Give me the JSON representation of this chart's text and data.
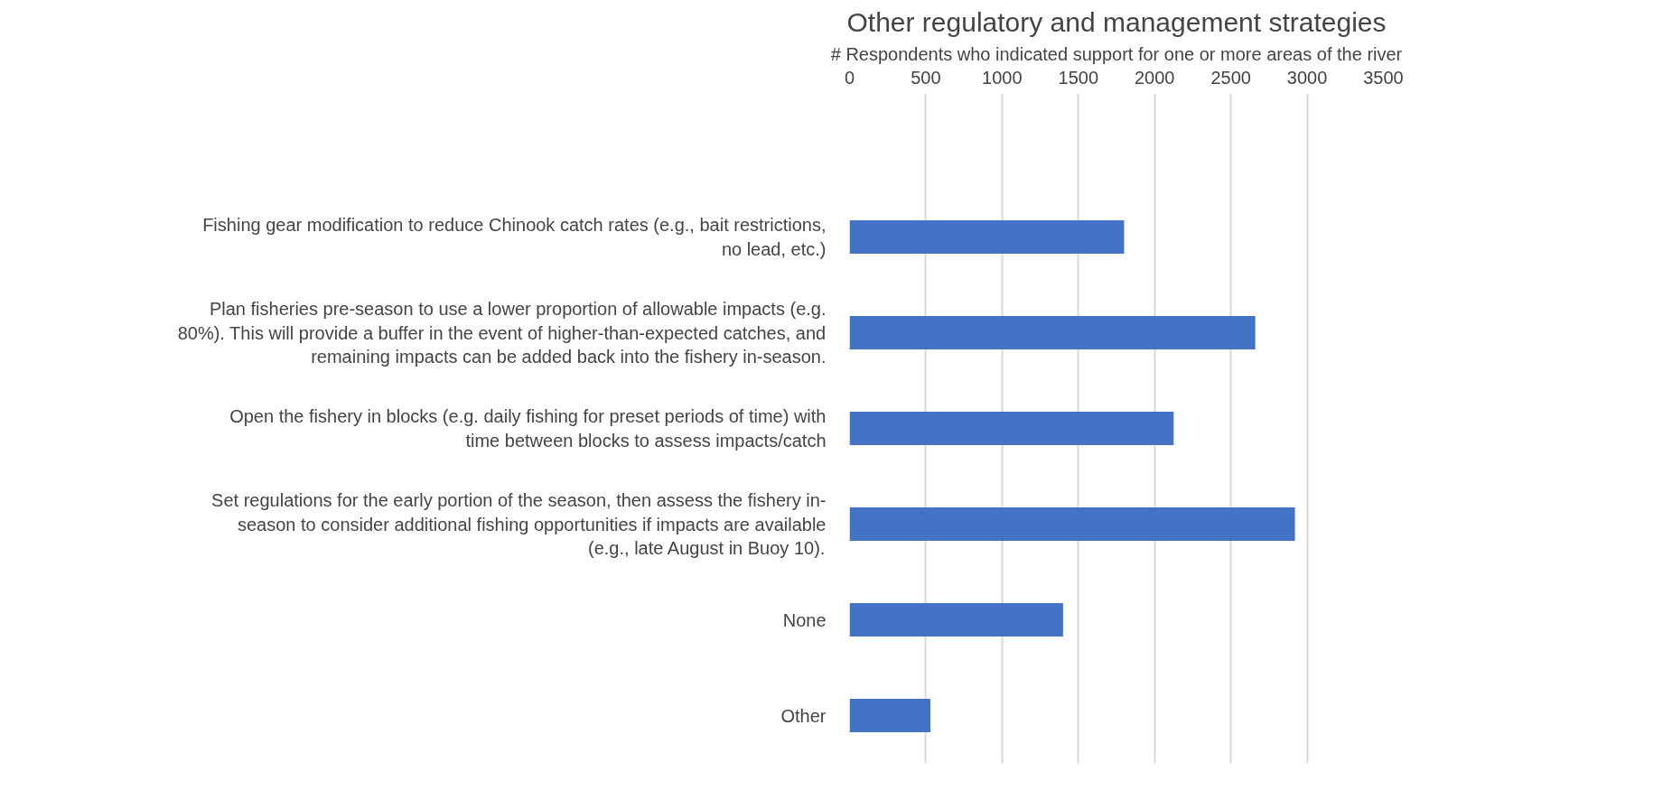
{
  "chart_data": {
    "type": "bar",
    "orientation": "horizontal",
    "title": "Other regulatory and management strategies",
    "xlabel": "# Respondents who indicated support for one or more areas of the river",
    "categories": [
      null,
      "Fishing gear modification to reduce Chinook catch rates (e.g., bait restrictions, no lead, etc.)",
      "Plan fisheries pre-season to use a lower proportion of allowable impacts (e.g. 80%). This will provide a buffer in the event of higher-than-expected catches, and remaining impacts can be added back into the fishery in-season.",
      "Open the fishery in blocks (e.g. daily fishing for preset periods of time) with time between blocks to assess impacts/catch",
      "Set regulations for the early portion of the season, then assess the fishery in-season to consider additional fishing opportunities if impacts are available (e.g., late August in Buoy 10).",
      "None",
      "Other"
    ],
    "values": [
      null,
      1800,
      2660,
      2125,
      2920,
      1400,
      530
    ],
    "color": "#4472c4",
    "xlim": [
      0,
      3500
    ],
    "xticks": [
      0,
      500,
      1000,
      1500,
      2000,
      2500,
      3000,
      3500
    ],
    "grid": "x"
  }
}
